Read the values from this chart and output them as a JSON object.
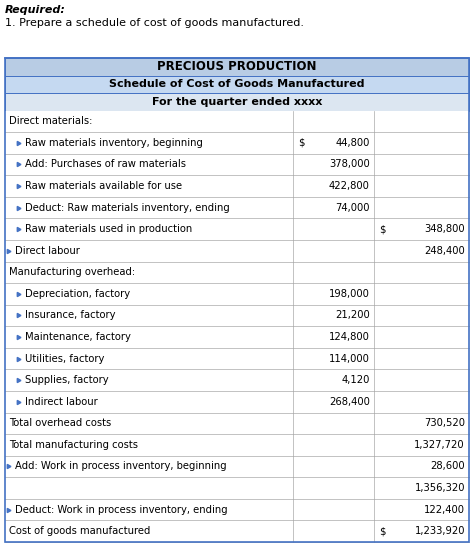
{
  "title1": "PRECIOUS PRODUCTION",
  "title2": "Schedule of Cost of Goods Manufactured",
  "title3": "For the quarter ended xxxx",
  "header_bg1": "#b8cce4",
  "header_bg2": "#c5d9f1",
  "header_bg3": "#dce6f1",
  "border_color": "#4472c4",
  "grid_color": "#aaaaaa",
  "required_text": "Required:",
  "required_sub": "1. Prepare a schedule of cost of goods manufactured.",
  "rows": [
    {
      "label": "Direct materials:",
      "col1": "",
      "col2": "",
      "indent": 0,
      "col1_dollar": false,
      "col2_dollar": false,
      "arrow": false
    },
    {
      "label": "Raw materials inventory, beginning",
      "col1": "44,800",
      "col2": "",
      "indent": 1,
      "col1_dollar": true,
      "col2_dollar": false,
      "arrow": true
    },
    {
      "label": "Add: Purchases of raw materials",
      "col1": "378,000",
      "col2": "",
      "indent": 1,
      "col1_dollar": false,
      "col2_dollar": false,
      "arrow": true
    },
    {
      "label": "Raw materials available for use",
      "col1": "422,800",
      "col2": "",
      "indent": 1,
      "col1_dollar": false,
      "col2_dollar": false,
      "arrow": true
    },
    {
      "label": "Deduct: Raw materials inventory, ending",
      "col1": "74,000",
      "col2": "",
      "indent": 1,
      "col1_dollar": false,
      "col2_dollar": false,
      "arrow": true
    },
    {
      "label": "Raw materials used in production",
      "col1": "",
      "col2": "348,800",
      "indent": 1,
      "col1_dollar": false,
      "col2_dollar": true,
      "arrow": true
    },
    {
      "label": "Direct labour",
      "col1": "",
      "col2": "248,400",
      "indent": 0,
      "col1_dollar": false,
      "col2_dollar": false,
      "arrow": true
    },
    {
      "label": "Manufacturing overhead:",
      "col1": "",
      "col2": "",
      "indent": 0,
      "col1_dollar": false,
      "col2_dollar": false,
      "arrow": false
    },
    {
      "label": "Depreciation, factory",
      "col1": "198,000",
      "col2": "",
      "indent": 1,
      "col1_dollar": false,
      "col2_dollar": false,
      "arrow": true
    },
    {
      "label": "Insurance, factory",
      "col1": "21,200",
      "col2": "",
      "indent": 1,
      "col1_dollar": false,
      "col2_dollar": false,
      "arrow": true
    },
    {
      "label": "Maintenance, factory",
      "col1": "124,800",
      "col2": "",
      "indent": 1,
      "col1_dollar": false,
      "col2_dollar": false,
      "arrow": true
    },
    {
      "label": "Utilities, factory",
      "col1": "114,000",
      "col2": "",
      "indent": 1,
      "col1_dollar": false,
      "col2_dollar": false,
      "arrow": true
    },
    {
      "label": "Supplies, factory",
      "col1": "4,120",
      "col2": "",
      "indent": 1,
      "col1_dollar": false,
      "col2_dollar": false,
      "arrow": true
    },
    {
      "label": "Indirect labour",
      "col1": "268,400",
      "col2": "",
      "indent": 1,
      "col1_dollar": false,
      "col2_dollar": false,
      "arrow": true
    },
    {
      "label": "Total overhead costs",
      "col1": "",
      "col2": "730,520",
      "indent": 0,
      "col1_dollar": false,
      "col2_dollar": false,
      "arrow": false
    },
    {
      "label": "Total manufacturing costs",
      "col1": "",
      "col2": "1,327,720",
      "indent": 0,
      "col1_dollar": false,
      "col2_dollar": false,
      "arrow": false
    },
    {
      "label": "Add: Work in process inventory, beginning",
      "col1": "",
      "col2": "28,600",
      "indent": 0,
      "col1_dollar": false,
      "col2_dollar": false,
      "arrow": true
    },
    {
      "label": "",
      "col1": "",
      "col2": "1,356,320",
      "indent": 0,
      "col1_dollar": false,
      "col2_dollar": false,
      "arrow": false
    },
    {
      "label": "Deduct: Work in process inventory, ending",
      "col1": "",
      "col2": "122,400",
      "indent": 0,
      "col1_dollar": false,
      "col2_dollar": false,
      "arrow": true
    },
    {
      "label": "Cost of goods manufactured",
      "col1": "",
      "col2": "1,233,920",
      "indent": 0,
      "col1_dollar": false,
      "col2_dollar": true,
      "arrow": false
    }
  ],
  "fig_w": 4.74,
  "fig_h": 5.47,
  "dpi": 100
}
